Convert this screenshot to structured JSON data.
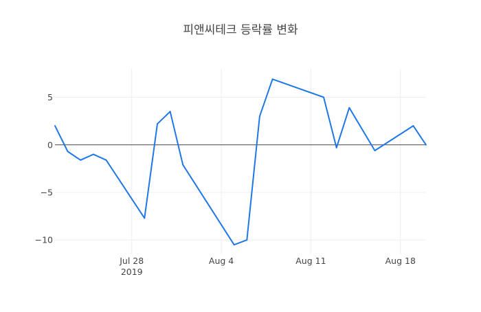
{
  "chart_data": {
    "type": "line",
    "title": "피앤씨테크 등락률 변화",
    "xlabel": "",
    "ylabel": "",
    "x": [
      "2019-07-22",
      "2019-07-23",
      "2019-07-24",
      "2019-07-25",
      "2019-07-26",
      "2019-07-29",
      "2019-07-30",
      "2019-07-31",
      "2019-08-01",
      "2019-08-05",
      "2019-08-06",
      "2019-08-07",
      "2019-08-08",
      "2019-08-12",
      "2019-08-13",
      "2019-08-14",
      "2019-08-16",
      "2019-08-19",
      "2019-08-20"
    ],
    "series": [
      {
        "values": [
          2.0,
          -0.7,
          -1.6,
          -1.0,
          -1.6,
          -7.7,
          2.2,
          3.5,
          -2.1,
          -10.5,
          -10.0,
          3.0,
          6.9,
          5.0,
          -0.3,
          3.9,
          -0.6,
          2.0,
          0.0
        ],
        "color": "#1f77e6"
      }
    ],
    "xlim": [
      "2019-07-22",
      "2019-08-20"
    ],
    "ylim": [
      -11.5,
      8
    ],
    "x_ticks": [
      {
        "date": "2019-07-28",
        "label": "Jul 28",
        "sublabel": "2019"
      },
      {
        "date": "2019-08-04",
        "label": "Aug 4",
        "sublabel": ""
      },
      {
        "date": "2019-08-11",
        "label": "Aug 11",
        "sublabel": ""
      },
      {
        "date": "2019-08-18",
        "label": "Aug 18",
        "sublabel": ""
      }
    ],
    "y_ticks": [
      {
        "value": 5,
        "label": "5"
      },
      {
        "value": 0,
        "label": "0"
      },
      {
        "value": -5,
        "label": "−5"
      },
      {
        "value": -10,
        "label": "−10"
      }
    ],
    "grid": true,
    "zero_line": true,
    "grid_color": "#eeeeee",
    "zero_line_color": "#444444"
  }
}
